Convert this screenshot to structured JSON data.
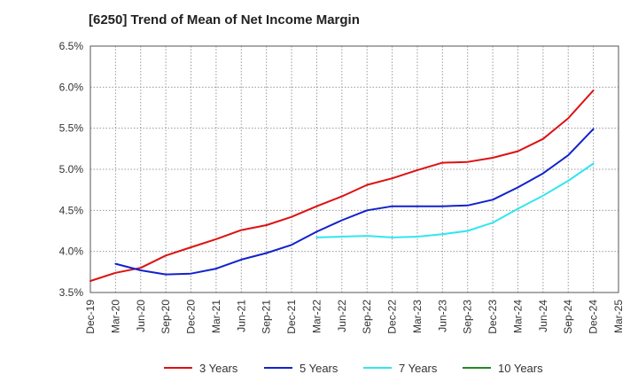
{
  "chart_data": {
    "type": "line",
    "title": "[6250]  Trend of Mean of Net Income Margin",
    "xlabel": "",
    "ylabel": "",
    "ylim": [
      3.5,
      6.5
    ],
    "yticks": [
      "3.5%",
      "4.0%",
      "4.5%",
      "5.0%",
      "5.5%",
      "6.0%",
      "6.5%"
    ],
    "x_range": [
      "Dec-19",
      "Mar-25"
    ],
    "x_tick_labels": [
      "Dec-19",
      "Mar-20",
      "Jun-20",
      "Sep-20",
      "Dec-20",
      "Mar-21",
      "Jun-21",
      "Sep-21",
      "Dec-21",
      "Mar-22",
      "Jun-22",
      "Sep-22",
      "Dec-22",
      "Mar-23",
      "Jun-23",
      "Sep-23",
      "Dec-23",
      "Mar-24",
      "Jun-24",
      "Sep-24",
      "Dec-24",
      "Mar-25"
    ],
    "grid": true,
    "legend_position": "bottom",
    "series": [
      {
        "name": "3 Years",
        "color": "#dd1111",
        "points": [
          [
            "Dec-19",
            3.64
          ],
          [
            "Mar-20",
            3.74
          ],
          [
            "Jun-20",
            3.8
          ],
          [
            "Sep-20",
            3.95
          ],
          [
            "Dec-20",
            4.05
          ],
          [
            "Mar-21",
            4.15
          ],
          [
            "Jun-21",
            4.26
          ],
          [
            "Sep-21",
            4.32
          ],
          [
            "Dec-21",
            4.42
          ],
          [
            "Mar-22",
            4.55
          ],
          [
            "Jun-22",
            4.67
          ],
          [
            "Sep-22",
            4.81
          ],
          [
            "Dec-22",
            4.89
          ],
          [
            "Mar-23",
            4.99
          ],
          [
            "Jun-23",
            5.08
          ],
          [
            "Sep-23",
            5.09
          ],
          [
            "Dec-23",
            5.14
          ],
          [
            "Mar-24",
            5.22
          ],
          [
            "Jun-24",
            5.37
          ],
          [
            "Sep-24",
            5.62
          ],
          [
            "Dec-24",
            5.96
          ]
        ]
      },
      {
        "name": "5 Years",
        "color": "#1122cc",
        "points": [
          [
            "Mar-20",
            3.85
          ],
          [
            "Jun-20",
            3.77
          ],
          [
            "Sep-20",
            3.72
          ],
          [
            "Dec-20",
            3.73
          ],
          [
            "Mar-21",
            3.79
          ],
          [
            "Jun-21",
            3.9
          ],
          [
            "Sep-21",
            3.98
          ],
          [
            "Dec-21",
            4.08
          ],
          [
            "Mar-22",
            4.24
          ],
          [
            "Jun-22",
            4.38
          ],
          [
            "Sep-22",
            4.5
          ],
          [
            "Dec-22",
            4.55
          ],
          [
            "Mar-23",
            4.55
          ],
          [
            "Jun-23",
            4.55
          ],
          [
            "Sep-23",
            4.56
          ],
          [
            "Dec-23",
            4.63
          ],
          [
            "Mar-24",
            4.78
          ],
          [
            "Jun-24",
            4.95
          ],
          [
            "Sep-24",
            5.17
          ],
          [
            "Dec-24",
            5.49
          ]
        ]
      },
      {
        "name": "7 Years",
        "color": "#33e5ef",
        "points": [
          [
            "Mar-22",
            4.17
          ],
          [
            "Jun-22",
            4.18
          ],
          [
            "Sep-22",
            4.19
          ],
          [
            "Dec-22",
            4.17
          ],
          [
            "Mar-23",
            4.18
          ],
          [
            "Jun-23",
            4.21
          ],
          [
            "Sep-23",
            4.25
          ],
          [
            "Dec-23",
            4.35
          ],
          [
            "Mar-24",
            4.52
          ],
          [
            "Jun-24",
            4.68
          ],
          [
            "Sep-24",
            4.86
          ],
          [
            "Dec-24",
            5.07
          ]
        ]
      },
      {
        "name": "10 Years",
        "color": "#228822",
        "points": []
      }
    ]
  }
}
